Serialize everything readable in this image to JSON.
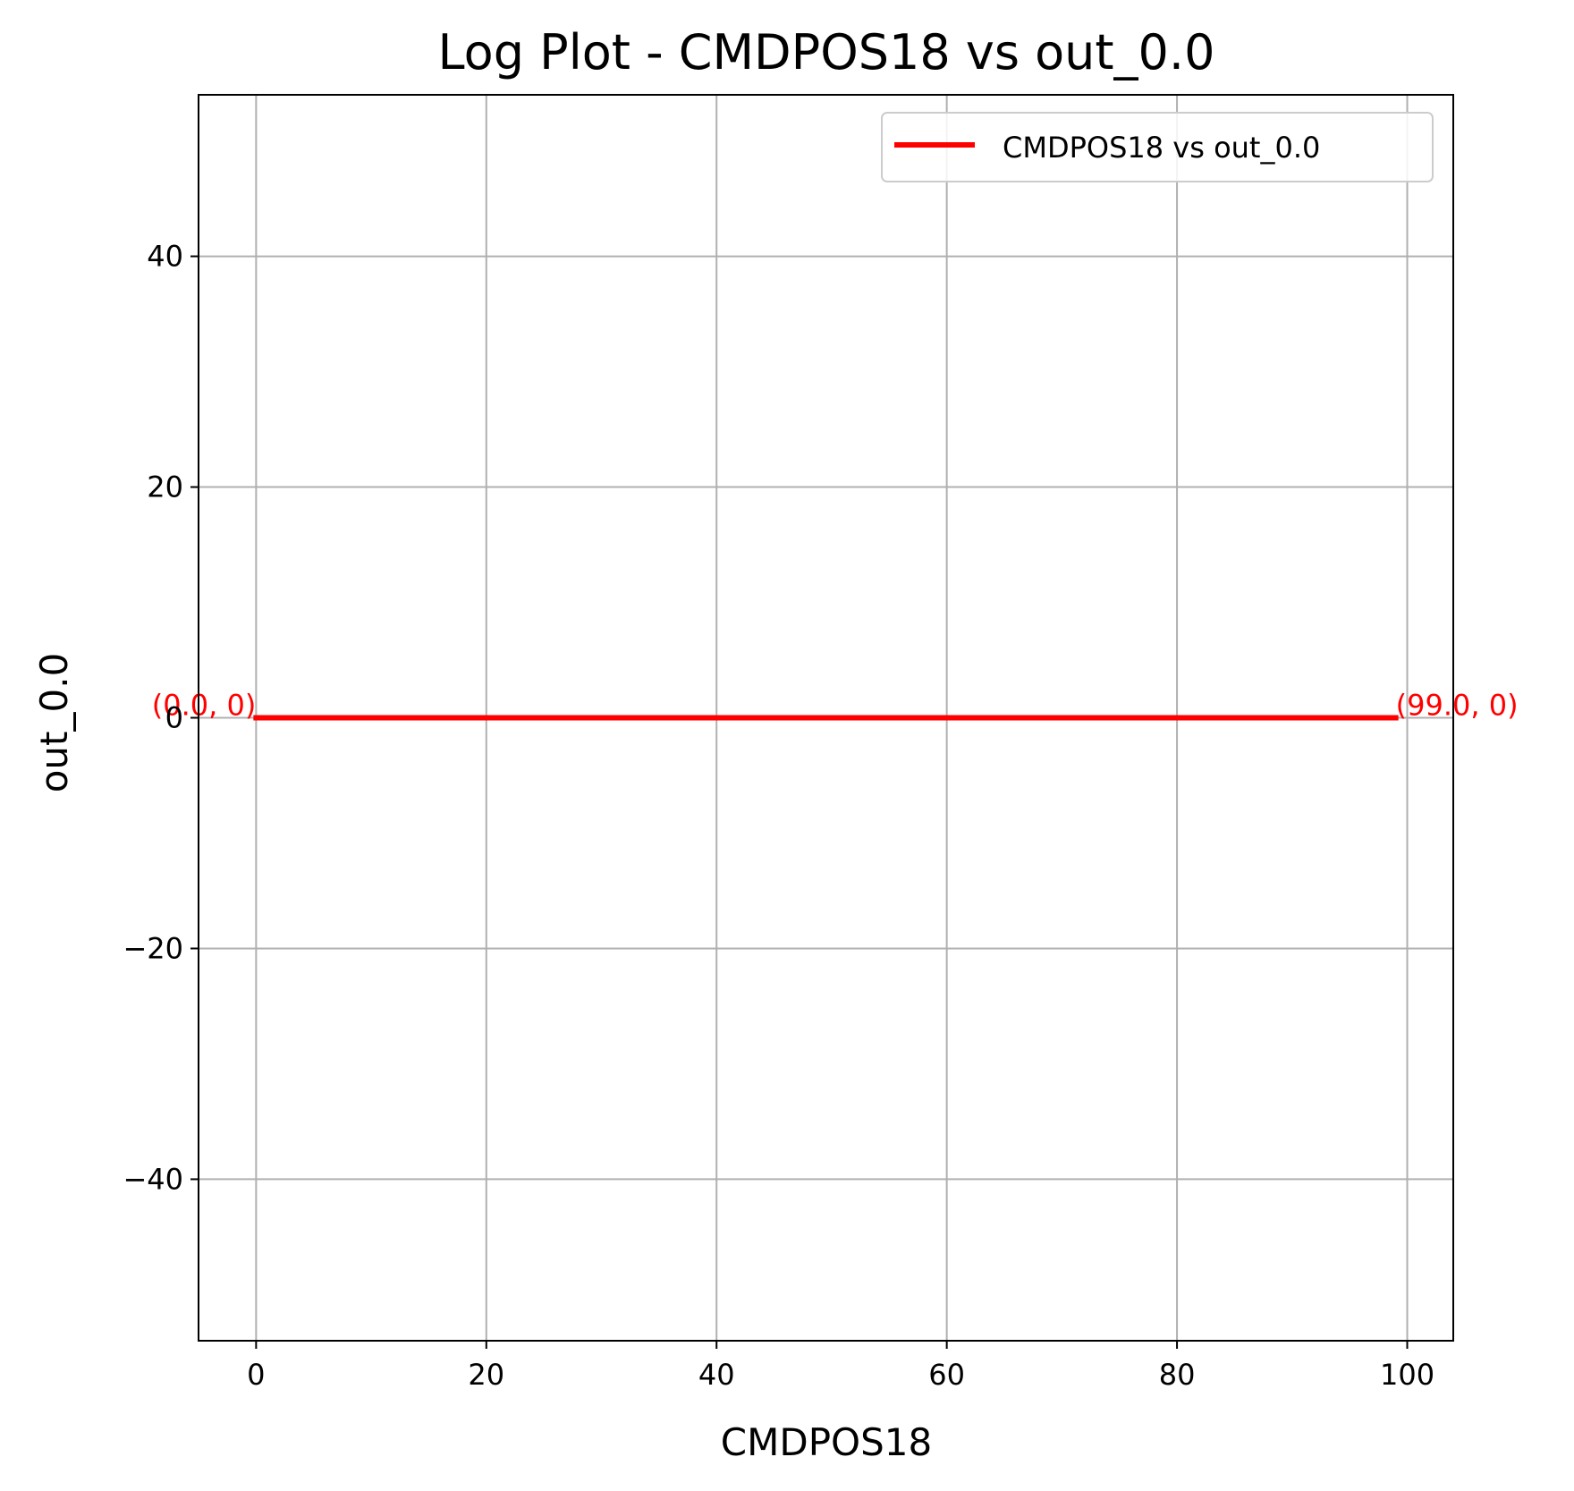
{
  "chart_data": {
    "type": "line",
    "title": "Log Plot - CMDPOS18 vs out_0.0",
    "xlabel": "CMDPOS18",
    "ylabel": "out_0.0",
    "xlim": [
      -5,
      104
    ],
    "ylim": [
      -54,
      54
    ],
    "x_ticks": [
      0,
      20,
      40,
      60,
      80,
      100
    ],
    "x_tick_labels": [
      "0",
      "20",
      "40",
      "60",
      "80",
      "100"
    ],
    "y_ticks": [
      -40,
      -20,
      0,
      20,
      40
    ],
    "y_tick_labels": [
      "−40",
      "−20",
      "0",
      "20",
      "40"
    ],
    "grid": true,
    "legend_position": "top-right",
    "series": [
      {
        "name": "CMDPOS18 vs out_0.0",
        "color": "#ff0000",
        "x": [
          0,
          99
        ],
        "y": [
          0,
          0
        ]
      }
    ],
    "annotations": [
      {
        "text": "(0.0, 0)",
        "x": 0,
        "y": 0,
        "color": "#ff0000",
        "anchor": "end"
      },
      {
        "text": "(99.0, 0)",
        "x": 99,
        "y": 0,
        "color": "#ff0000",
        "anchor": "start"
      }
    ]
  }
}
